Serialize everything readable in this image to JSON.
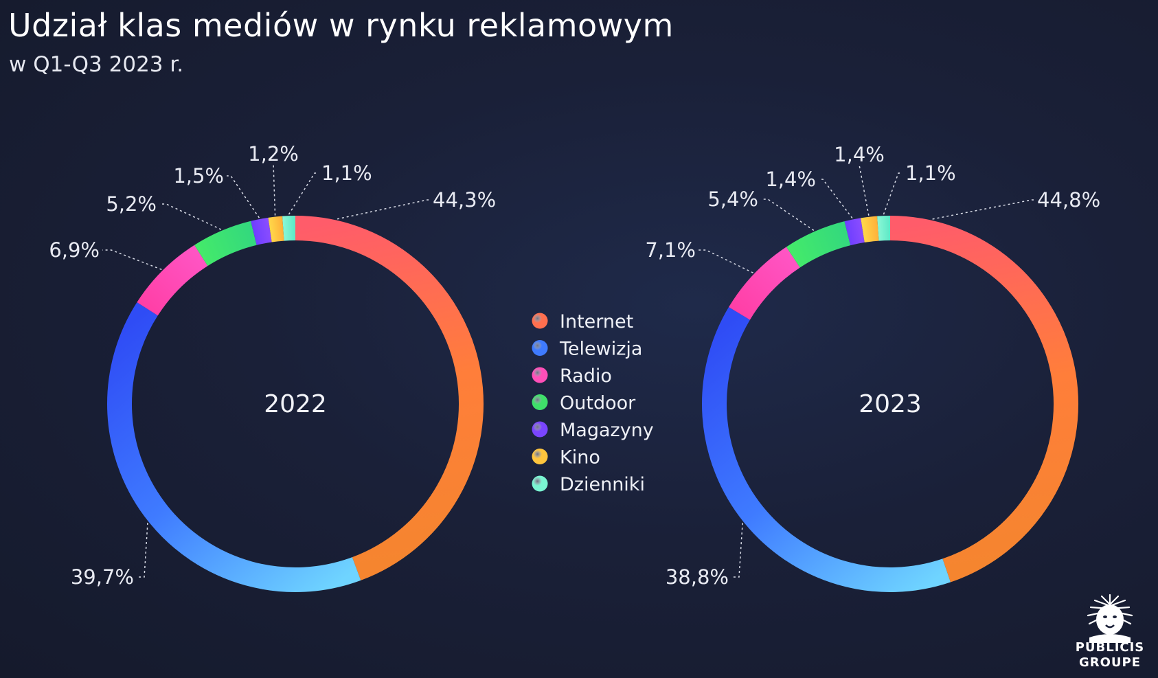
{
  "title": "Udział klas mediów w rynku reklamowym",
  "subtitle": "w Q1-Q3 2023 r.",
  "logo": {
    "line1": "PUBLICIS",
    "line2": "GROUPE"
  },
  "chart_data": [
    {
      "type": "pie",
      "center_label": "2022",
      "slices": [
        {
          "category": "Internet",
          "value": 44.3,
          "label": "44,3%"
        },
        {
          "category": "Telewizja",
          "value": 39.7,
          "label": "39,7%"
        },
        {
          "category": "Radio",
          "value": 6.9,
          "label": "6,9%"
        },
        {
          "category": "Outdoor",
          "value": 5.2,
          "label": "5,2%"
        },
        {
          "category": "Magazyny",
          "value": 1.5,
          "label": "1,5%"
        },
        {
          "category": "Kino",
          "value": 1.2,
          "label": "1,2%"
        },
        {
          "category": "Dzienniki",
          "value": 1.1,
          "label": "1,1%"
        }
      ]
    },
    {
      "type": "pie",
      "center_label": "2023",
      "slices": [
        {
          "category": "Internet",
          "value": 44.8,
          "label": "44,8%"
        },
        {
          "category": "Telewizja",
          "value": 38.8,
          "label": "38,8%"
        },
        {
          "category": "Radio",
          "value": 7.1,
          "label": "7,1%"
        },
        {
          "category": "Outdoor",
          "value": 5.4,
          "label": "5,4%"
        },
        {
          "category": "Magazyny",
          "value": 1.4,
          "label": "1,4%"
        },
        {
          "category": "Kino",
          "value": 1.4,
          "label": "1,4%"
        },
        {
          "category": "Dzienniki",
          "value": 1.1,
          "label": "1,1%"
        }
      ]
    }
  ],
  "legend": [
    {
      "label": "Internet",
      "color": "#ff6f4f"
    },
    {
      "label": "Telewizja",
      "color": "#3f7bff"
    },
    {
      "label": "Radio",
      "color": "#ff4fb8"
    },
    {
      "label": "Outdoor",
      "color": "#3fe06a"
    },
    {
      "label": "Magazyny",
      "color": "#7a45ff"
    },
    {
      "label": "Kino",
      "color": "#ffc53d"
    },
    {
      "label": "Dzienniki",
      "color": "#7af5d2"
    }
  ],
  "colors": {
    "Internet": [
      "#ff5c6a",
      "#ff7e3a",
      "#f5852f"
    ],
    "Telewizja": [
      "#6fd4ff",
      "#3f7bff",
      "#2f4cf5"
    ],
    "Radio": [
      "#ff3fa6",
      "#ff55c4"
    ],
    "Outdoor": [
      "#44ea6a",
      "#33d87e"
    ],
    "Magazyny": [
      "#6f3fff",
      "#8a4dff"
    ],
    "Kino": [
      "#ffd84a",
      "#ffb03a"
    ],
    "Dzienniki": [
      "#8af7d6",
      "#5ce8c6"
    ]
  }
}
